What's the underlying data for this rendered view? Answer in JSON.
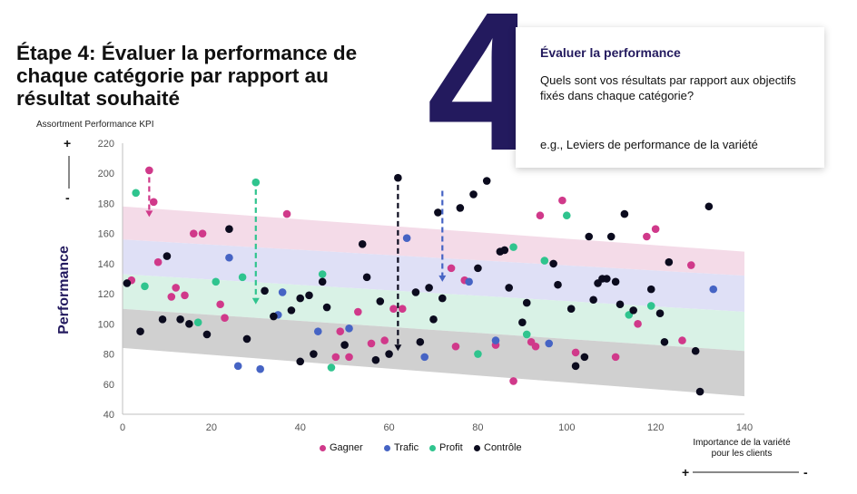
{
  "title": "Étape 4: Évaluer la performance de chaque catégorie par rapport au résultat souhaité",
  "big_number": "4",
  "info_box": {
    "heading": "Évaluer la performance",
    "question": "Quels sont vos résultats par rapport aux objectifs fixés dans chaque catégorie?",
    "example": "e.g., Leviers de performance de la variété"
  },
  "colors": {
    "Gagner": "#d0398a",
    "Trafic": "#4664c4",
    "Profit": "#2fc48e",
    "Contrôle": "#0b0b1e",
    "title_accent": "#231a5e"
  },
  "chart_data": {
    "type": "scatter",
    "kpi_label": "Assortment Performance KPI",
    "ylabel": "Performance",
    "xlabel": "Importance de la variété pour les clients",
    "xlim": [
      0,
      140
    ],
    "ylim": [
      40,
      220
    ],
    "xticks": [
      0,
      20,
      40,
      60,
      80,
      100,
      120,
      140
    ],
    "yticks": [
      40,
      60,
      80,
      100,
      120,
      140,
      160,
      180,
      200,
      220
    ],
    "y_signs": {
      "top": "+",
      "bottom": "-"
    },
    "x_signs": {
      "left": "+",
      "right": "-"
    },
    "grid": false,
    "legend_position": "bottom",
    "bands": [
      {
        "category": "Gagner",
        "color": "#f4dbe8",
        "x": [
          0,
          140
        ],
        "low": [
          156,
          132
        ],
        "high": [
          178,
          148
        ]
      },
      {
        "category": "Trafic",
        "color": "#dfe0f6",
        "x": [
          0,
          140
        ],
        "low": [
          133,
          108
        ],
        "high": [
          156,
          132
        ]
      },
      {
        "category": "Profit",
        "color": "#d9f2e6",
        "x": [
          0,
          140
        ],
        "low": [
          110,
          82
        ],
        "high": [
          133,
          108
        ]
      },
      {
        "category": "Contrôle",
        "color": "#d0d0d0",
        "x": [
          0,
          140
        ],
        "low": [
          84,
          52
        ],
        "high": [
          110,
          82
        ]
      }
    ],
    "arrows": [
      {
        "category": "Gagner",
        "x": 6,
        "from": 201,
        "to": 171
      },
      {
        "category": "Profit",
        "x": 30,
        "from": 193,
        "to": 113
      },
      {
        "category": "Contrôle",
        "x": 62,
        "from": 196,
        "to": 82
      },
      {
        "category": "Trafic",
        "x": 72,
        "from": 192,
        "to": 128
      }
    ],
    "series": [
      {
        "name": "Gagner",
        "points": [
          [
            2,
            129
          ],
          [
            6,
            202
          ],
          [
            7,
            181
          ],
          [
            8,
            141
          ],
          [
            11,
            118
          ],
          [
            12,
            124
          ],
          [
            14,
            119
          ],
          [
            16,
            160
          ],
          [
            18,
            160
          ],
          [
            22,
            113
          ],
          [
            23,
            104
          ],
          [
            37,
            173
          ],
          [
            48,
            78
          ],
          [
            49,
            95
          ],
          [
            51,
            78
          ],
          [
            53,
            108
          ],
          [
            56,
            87
          ],
          [
            59,
            89
          ],
          [
            61,
            110
          ],
          [
            63,
            110
          ],
          [
            74,
            137
          ],
          [
            75,
            85
          ],
          [
            77,
            129
          ],
          [
            84,
            86
          ],
          [
            88,
            62
          ],
          [
            92,
            88
          ],
          [
            93,
            85
          ],
          [
            94,
            172
          ],
          [
            99,
            182
          ],
          [
            102,
            81
          ],
          [
            111,
            78
          ],
          [
            116,
            100
          ],
          [
            118,
            158
          ],
          [
            120,
            163
          ],
          [
            126,
            89
          ],
          [
            128,
            139
          ]
        ]
      },
      {
        "name": "Trafic",
        "points": [
          [
            24,
            144
          ],
          [
            26,
            72
          ],
          [
            31,
            70
          ],
          [
            35,
            106
          ],
          [
            36,
            121
          ],
          [
            44,
            95
          ],
          [
            51,
            97
          ],
          [
            64,
            157
          ],
          [
            68,
            78
          ],
          [
            78,
            128
          ],
          [
            84,
            89
          ],
          [
            96,
            87
          ],
          [
            133,
            123
          ]
        ]
      },
      {
        "name": "Profit",
        "points": [
          [
            3,
            187
          ],
          [
            5,
            125
          ],
          [
            17,
            101
          ],
          [
            21,
            128
          ],
          [
            27,
            131
          ],
          [
            30,
            194
          ],
          [
            45,
            133
          ],
          [
            47,
            71
          ],
          [
            80,
            80
          ],
          [
            88,
            151
          ],
          [
            91,
            93
          ],
          [
            95,
            142
          ],
          [
            100,
            172
          ],
          [
            114,
            106
          ],
          [
            119,
            112
          ]
        ]
      },
      {
        "name": "Contrôle",
        "points": [
          [
            1,
            127
          ],
          [
            4,
            95
          ],
          [
            9,
            103
          ],
          [
            10,
            145
          ],
          [
            13,
            103
          ],
          [
            15,
            100
          ],
          [
            19,
            93
          ],
          [
            24,
            163
          ],
          [
            28,
            90
          ],
          [
            32,
            122
          ],
          [
            34,
            105
          ],
          [
            38,
            109
          ],
          [
            40,
            75
          ],
          [
            40,
            117
          ],
          [
            42,
            119
          ],
          [
            43,
            80
          ],
          [
            45,
            128
          ],
          [
            46,
            111
          ],
          [
            50,
            86
          ],
          [
            54,
            153
          ],
          [
            55,
            131
          ],
          [
            57,
            76
          ],
          [
            58,
            115
          ],
          [
            60,
            80
          ],
          [
            62,
            197
          ],
          [
            66,
            121
          ],
          [
            67,
            88
          ],
          [
            69,
            124
          ],
          [
            70,
            103
          ],
          [
            71,
            174
          ],
          [
            72,
            117
          ],
          [
            76,
            177
          ],
          [
            79,
            186
          ],
          [
            80,
            137
          ],
          [
            82,
            195
          ],
          [
            85,
            148
          ],
          [
            86,
            149
          ],
          [
            87,
            124
          ],
          [
            90,
            101
          ],
          [
            91,
            114
          ],
          [
            97,
            140
          ],
          [
            98,
            126
          ],
          [
            101,
            110
          ],
          [
            102,
            72
          ],
          [
            104,
            78
          ],
          [
            105,
            158
          ],
          [
            106,
            116
          ],
          [
            107,
            127
          ],
          [
            108,
            130
          ],
          [
            109,
            130
          ],
          [
            110,
            158
          ],
          [
            111,
            128
          ],
          [
            112,
            113
          ],
          [
            113,
            173
          ],
          [
            115,
            109
          ],
          [
            119,
            123
          ],
          [
            121,
            107
          ],
          [
            122,
            88
          ],
          [
            123,
            141
          ],
          [
            129,
            82
          ],
          [
            130,
            55
          ],
          [
            132,
            178
          ]
        ]
      }
    ]
  }
}
